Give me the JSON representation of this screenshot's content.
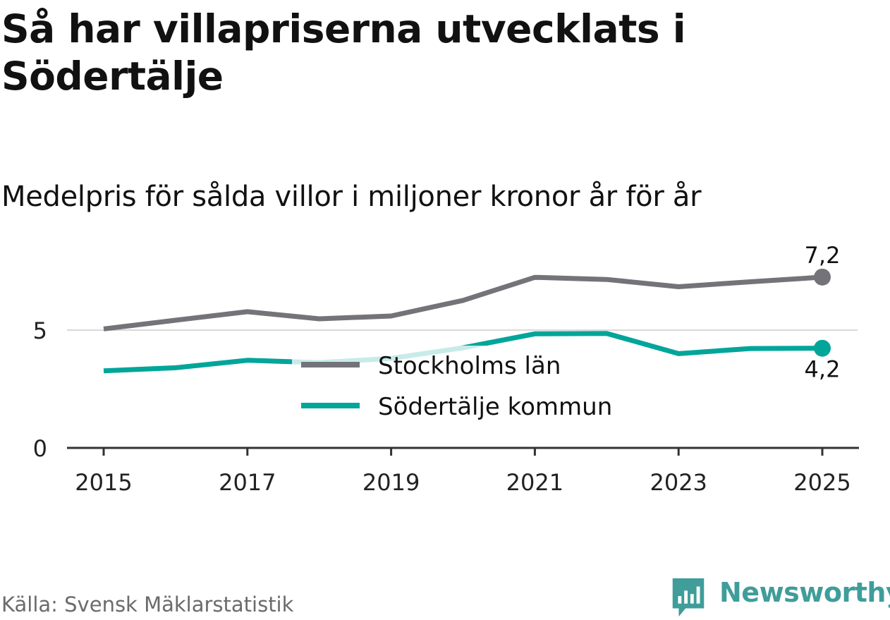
{
  "chart_data": {
    "type": "line",
    "title": "Så har villapriserna utvecklats i Södertälje",
    "subtitle": "Medelpris för sålda villor i miljoner kronor år för år",
    "x": [
      2015,
      2016,
      2017,
      2018,
      2019,
      2020,
      2021,
      2022,
      2023,
      2024,
      2025
    ],
    "xticks": [
      "2015",
      "2017",
      "2019",
      "2021",
      "2023",
      "2025"
    ],
    "yticks": [
      "0",
      "5"
    ],
    "ylim": [
      0,
      8
    ],
    "series": [
      {
        "name": "Stockholms län",
        "color": "#737379",
        "values": [
          5.05,
          5.42,
          5.78,
          5.48,
          5.6,
          6.26,
          7.24,
          7.15,
          6.84,
          7.05,
          7.25
        ],
        "end_label": "7,2"
      },
      {
        "name": "Södertälje kommun",
        "color": "#02a59a",
        "values": [
          3.27,
          3.4,
          3.72,
          3.62,
          3.8,
          4.25,
          4.84,
          4.86,
          4.0,
          4.22,
          4.23
        ],
        "end_label": "4,2"
      }
    ],
    "legend_position": "center",
    "grid_lines": [
      5
    ]
  },
  "source": "Källa: Svensk Mäklarstatistik",
  "brand": {
    "name": "Newsworthy",
    "color": "#3f9d9a"
  }
}
